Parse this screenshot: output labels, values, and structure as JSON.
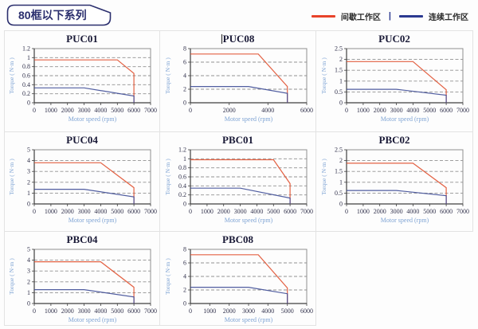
{
  "header": {
    "title": "80框以下系列"
  },
  "legend": {
    "intermittent": "间歇工作区",
    "separator": "|",
    "continuous": "连续工作区",
    "intermittent_color": "#e8432a",
    "continuous_color": "#2b3990"
  },
  "chart_data": [
    {
      "type": "line",
      "title": "PUC01",
      "xlabel": "Motor speed (rpm)",
      "ylabel": "Torque ( N·m )",
      "xlim": [
        0,
        7000
      ],
      "ylim": [
        0,
        1.2
      ],
      "xticks": [
        0,
        1000,
        2000,
        3000,
        4000,
        5000,
        6000,
        7000
      ],
      "yticks": [
        0,
        0.2,
        0.4,
        0.6,
        0.8,
        1,
        1.2
      ],
      "grid": "dashed-horizontal",
      "legend_position": "none",
      "series": [
        {
          "name": "间歇工作区",
          "color": "#e0502f",
          "points": [
            [
              0,
              0.95
            ],
            [
              5000,
              0.95
            ],
            [
              6000,
              0.65
            ],
            [
              6000,
              0
            ]
          ]
        },
        {
          "name": "连续工作区",
          "color": "#3d4b96",
          "points": [
            [
              0,
              0.33
            ],
            [
              3000,
              0.33
            ],
            [
              6000,
              0.15
            ],
            [
              6000,
              0
            ]
          ]
        }
      ]
    },
    {
      "type": "line",
      "title": "PUC08",
      "xlabel": "Motor speed (rpm)",
      "ylabel": "Torque ( N·m )",
      "xlim": [
        0,
        6000
      ],
      "ylim": [
        0,
        8
      ],
      "xticks": [
        0,
        2000,
        4000,
        6000
      ],
      "yticks": [
        0,
        2,
        4,
        6,
        8
      ],
      "grid": "dashed-horizontal",
      "legend_position": "none",
      "series": [
        {
          "name": "间歇工作区",
          "color": "#e0502f",
          "points": [
            [
              0,
              7.2
            ],
            [
              3500,
              7.2
            ],
            [
              5000,
              2.4
            ],
            [
              5000,
              0
            ]
          ]
        },
        {
          "name": "连续工作区",
          "color": "#3d4b96",
          "points": [
            [
              0,
              2.4
            ],
            [
              3000,
              2.4
            ],
            [
              5000,
              1.4
            ],
            [
              5000,
              0
            ]
          ]
        }
      ]
    },
    {
      "type": "line",
      "title": "PUC02",
      "xlabel": "Motor speed (rpm)",
      "ylabel": "Torque ( N·m )",
      "xlim": [
        0,
        7000
      ],
      "ylim": [
        0,
        2.5
      ],
      "xticks": [
        0,
        1000,
        2000,
        3000,
        4000,
        5000,
        6000,
        7000
      ],
      "yticks": [
        0,
        0.5,
        1,
        1.5,
        2,
        2.5
      ],
      "grid": "dashed-horizontal",
      "legend_position": "none",
      "series": [
        {
          "name": "间歇工作区",
          "color": "#e0502f",
          "points": [
            [
              0,
              1.9
            ],
            [
              4000,
              1.9
            ],
            [
              6000,
              0.6
            ],
            [
              6000,
              0
            ]
          ]
        },
        {
          "name": "连续工作区",
          "color": "#3d4b96",
          "points": [
            [
              0,
              0.62
            ],
            [
              3000,
              0.62
            ],
            [
              6000,
              0.35
            ],
            [
              6000,
              0
            ]
          ]
        }
      ]
    },
    {
      "type": "line",
      "title": "PUC04",
      "xlabel": "Motor speed (rpm)",
      "ylabel": "Torque ( N·m )",
      "xlim": [
        0,
        7000
      ],
      "ylim": [
        0,
        5
      ],
      "xticks": [
        0,
        1000,
        2000,
        3000,
        4000,
        5000,
        6000,
        7000
      ],
      "yticks": [
        0,
        1,
        2,
        3,
        4,
        5
      ],
      "grid": "dashed-horizontal",
      "legend_position": "none",
      "series": [
        {
          "name": "间歇工作区",
          "color": "#e0502f",
          "points": [
            [
              0,
              3.8
            ],
            [
              4000,
              3.8
            ],
            [
              6000,
              1.5
            ],
            [
              6000,
              0
            ]
          ]
        },
        {
          "name": "连续工作区",
          "color": "#3d4b96",
          "points": [
            [
              0,
              1.35
            ],
            [
              3000,
              1.35
            ],
            [
              6000,
              0.65
            ],
            [
              6000,
              0
            ]
          ]
        }
      ]
    },
    {
      "type": "line",
      "title": "PBC01",
      "xlabel": "Motor speed (rpm)",
      "ylabel": "Torque ( N·m )",
      "xlim": [
        0,
        7000
      ],
      "ylim": [
        0,
        1.2
      ],
      "xticks": [
        0,
        1000,
        2000,
        3000,
        4000,
        5000,
        6000,
        7000
      ],
      "yticks": [
        0,
        0.2,
        0.4,
        0.6,
        0.8,
        1,
        1.2
      ],
      "grid": "dashed-horizontal",
      "legend_position": "none",
      "series": [
        {
          "name": "间歇工作区",
          "color": "#e0502f",
          "points": [
            [
              0,
              0.98
            ],
            [
              5000,
              0.98
            ],
            [
              6000,
              0.45
            ],
            [
              6000,
              0
            ]
          ]
        },
        {
          "name": "连续工作区",
          "color": "#3d4b96",
          "points": [
            [
              0,
              0.35
            ],
            [
              3000,
              0.35
            ],
            [
              6000,
              0.13
            ],
            [
              6000,
              0
            ]
          ]
        }
      ]
    },
    {
      "type": "line",
      "title": "PBC02",
      "xlabel": "Motor speed (rpm)",
      "ylabel": "Torque ( N·m )",
      "xlim": [
        0,
        7000
      ],
      "ylim": [
        0,
        2.5
      ],
      "xticks": [
        0,
        1000,
        2000,
        3000,
        4000,
        5000,
        6000,
        7000
      ],
      "yticks": [
        0,
        0.5,
        1,
        1.5,
        2,
        2.5
      ],
      "grid": "dashed-horizontal",
      "legend_position": "none",
      "series": [
        {
          "name": "间歇工作区",
          "color": "#e0502f",
          "points": [
            [
              0,
              1.88
            ],
            [
              4000,
              1.88
            ],
            [
              6000,
              0.75
            ],
            [
              6000,
              0
            ]
          ]
        },
        {
          "name": "连续工作区",
          "color": "#3d4b96",
          "points": [
            [
              0,
              0.62
            ],
            [
              3000,
              0.62
            ],
            [
              6000,
              0.38
            ],
            [
              6000,
              0
            ]
          ]
        }
      ]
    },
    {
      "type": "line",
      "title": "PBC04",
      "xlabel": "Motor speed (rpm)",
      "ylabel": "Torque ( N·m )",
      "xlim": [
        0,
        7000
      ],
      "ylim": [
        0,
        5
      ],
      "xticks": [
        0,
        1000,
        2000,
        3000,
        4000,
        5000,
        6000,
        7000
      ],
      "yticks": [
        0,
        1,
        2,
        3,
        4,
        5
      ],
      "grid": "dashed-horizontal",
      "legend_position": "none",
      "series": [
        {
          "name": "间歇工作区",
          "color": "#e0502f",
          "points": [
            [
              0,
              3.85
            ],
            [
              4000,
              3.85
            ],
            [
              6000,
              1.5
            ],
            [
              6000,
              0
            ]
          ]
        },
        {
          "name": "连续工作区",
          "color": "#3d4b96",
          "points": [
            [
              0,
              1.28
            ],
            [
              3000,
              1.28
            ],
            [
              6000,
              0.6
            ],
            [
              6000,
              0
            ]
          ]
        }
      ]
    },
    {
      "type": "line",
      "title": "PBC08",
      "xlabel": "Motor speed (rpm)",
      "ylabel": "Torque ( N·m )",
      "xlim": [
        0,
        6000
      ],
      "ylim": [
        0,
        8
      ],
      "xticks": [
        0,
        1000,
        2000,
        3000,
        4000,
        5000,
        6000
      ],
      "yticks": [
        0,
        2,
        4,
        6,
        8
      ],
      "grid": "dashed-horizontal",
      "legend_position": "none",
      "series": [
        {
          "name": "间歇工作区",
          "color": "#e0502f",
          "points": [
            [
              0,
              7.2
            ],
            [
              3500,
              7.2
            ],
            [
              5000,
              2.3
            ],
            [
              5000,
              0
            ]
          ]
        },
        {
          "name": "连续工作区",
          "color": "#3d4b96",
          "points": [
            [
              0,
              2.4
            ],
            [
              3000,
              2.4
            ],
            [
              5000,
              1.45
            ],
            [
              5000,
              0
            ]
          ]
        }
      ]
    }
  ]
}
